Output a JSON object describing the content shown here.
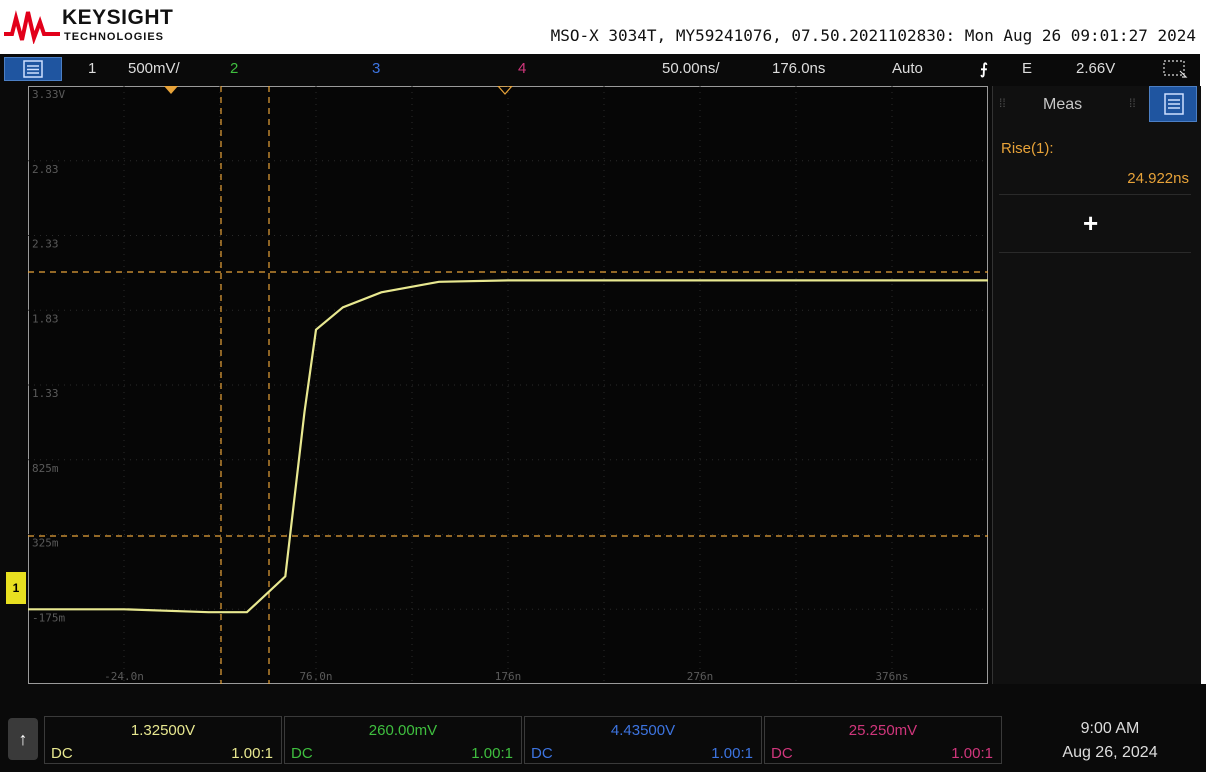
{
  "logo": {
    "wordmark": "KEYSIGHT",
    "sub": "TECHNOLOGIES"
  },
  "header": {
    "info": "MSO-X 3034T, MY59241076, 07.50.2021102830: Mon Aug 26 09:01:27 2024"
  },
  "top_bar": {
    "ch1_num": "1",
    "ch1_scale": "500mV/",
    "ch2_num": "2",
    "ch3_num": "3",
    "ch4_num": "4",
    "timebase": "50.00ns/",
    "delay": "176.0ns",
    "trigger_mode": "Auto",
    "trigger_slope_icon": "rising-edge-icon",
    "trigger_coupling": "E",
    "trigger_level": "2.66V"
  },
  "grid": {
    "y_labels": [
      "3.33V",
      "2.83",
      "2.33",
      "1.83",
      "1.33",
      "825m",
      "325m",
      "-175m"
    ],
    "x_labels": [
      "-24.0n",
      "76.0n",
      "176n",
      "276n",
      "376ns"
    ]
  },
  "colors": {
    "ch1": "#e8e890",
    "ch2": "#3fbf3f",
    "ch3": "#3d74e0",
    "ch4": "#d0367c",
    "cursor": "#e8a339",
    "meas": "#e8a339"
  },
  "meas": {
    "title": "Meas",
    "name": "Rise(1):",
    "value": "24.922ns",
    "add": "+"
  },
  "channels": [
    {
      "value": "1.32500V",
      "coupling": "DC",
      "probe": "1.00:1"
    },
    {
      "value": "260.00mV",
      "coupling": "DC",
      "probe": "1.00:1"
    },
    {
      "value": "4.43500V",
      "coupling": "DC",
      "probe": "1.00:1"
    },
    {
      "value": "25.250mV",
      "coupling": "DC",
      "probe": "1.00:1"
    }
  ],
  "clock": {
    "time": "9:00 AM",
    "date": "Aug 26, 2024"
  },
  "waveform": {
    "t": [
      -24,
      20,
      40,
      60,
      70,
      76,
      90,
      110,
      140,
      176,
      276,
      376
    ],
    "v": [
      0.08,
      0.06,
      0.06,
      0.3,
      1.4,
      1.95,
      2.1,
      2.2,
      2.27,
      2.28,
      2.28,
      2.28
    ]
  }
}
